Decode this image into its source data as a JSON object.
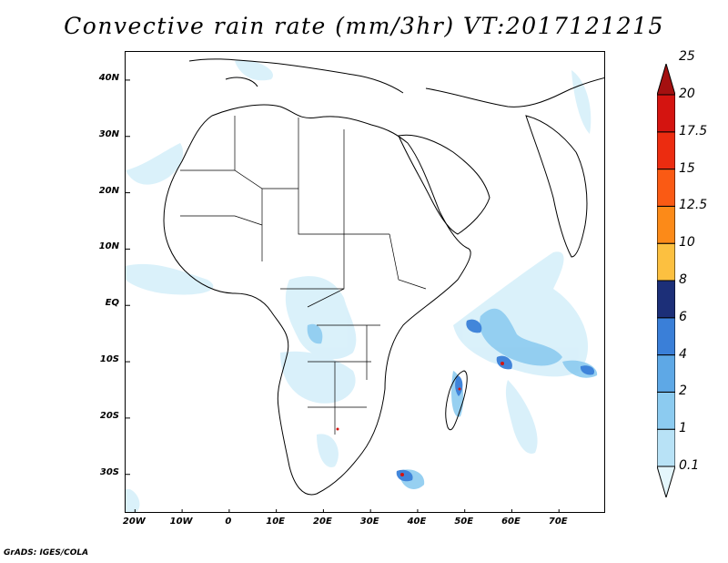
{
  "title": "Convective rain rate (mm/3hr) VT:2017121215",
  "footer": "GrADS: IGES/COLA",
  "map": {
    "lat_labels": [
      "40N",
      "30N",
      "20N",
      "10N",
      "EQ",
      "10S",
      "20S",
      "30S"
    ],
    "lat_values": [
      40,
      30,
      20,
      10,
      0,
      -10,
      -20,
      -30
    ],
    "lon_labels": [
      "20W",
      "10W",
      "0",
      "10E",
      "20E",
      "30E",
      "40E",
      "50E",
      "60E",
      "70E"
    ],
    "lon_values": [
      -20,
      -10,
      0,
      10,
      20,
      30,
      40,
      50,
      60,
      70
    ],
    "lon_range": [
      -22,
      80
    ],
    "lat_range": [
      -37,
      45
    ]
  },
  "colorbar": {
    "levels": [
      "0.1",
      "1",
      "2",
      "4",
      "6",
      "8",
      "10",
      "12.5",
      "15",
      "17.5",
      "20",
      "25"
    ],
    "colors": [
      "#e4f6fc",
      "#b8e2f6",
      "#8ccbf0",
      "#5ea8e6",
      "#3a7fd8",
      "#1c2f78",
      "#fcc040",
      "#fc8a18",
      "#fa5a14",
      "#ec2c10",
      "#d41410",
      "#a41010"
    ]
  }
}
